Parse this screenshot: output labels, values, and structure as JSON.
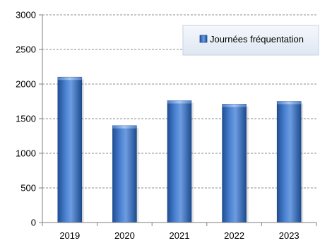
{
  "chart_data": {
    "type": "bar",
    "categories": [
      "2019",
      "2020",
      "2021",
      "2022",
      "2023"
    ],
    "series": [
      {
        "name": "Journées fréquentation",
        "values": [
          2100,
          1400,
          1760,
          1710,
          1750
        ]
      }
    ],
    "ylim": [
      0,
      3000
    ],
    "yticks": [
      0,
      500,
      1000,
      1500,
      2000,
      2500,
      3000
    ],
    "grid": "horizontal-dashed",
    "legend_position": "top-right",
    "colors": {
      "bar": "#3a73c5",
      "bar_dark": "#1f4f94",
      "bar_light": "#7aa7e6",
      "grid": "#8c8c8c"
    }
  }
}
